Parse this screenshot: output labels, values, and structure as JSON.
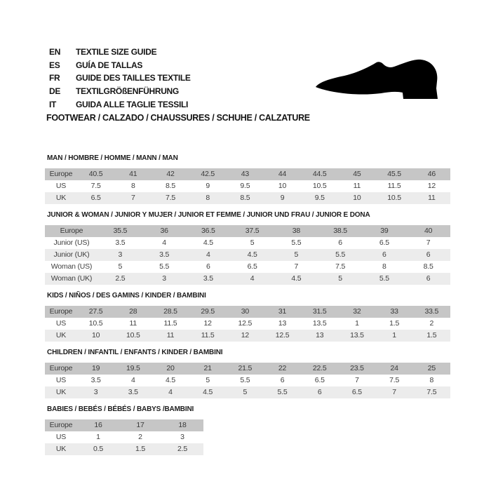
{
  "header": {
    "languages": [
      {
        "code": "EN",
        "label": "TEXTILE SIZE GUIDE"
      },
      {
        "code": "ES",
        "label": "GUÍA DE TALLAS"
      },
      {
        "code": "FR",
        "label": "GUIDE DES TAILLES TEXTILE"
      },
      {
        "code": "DE",
        "label": "TEXTILGRÖßENFÜHRUNG"
      },
      {
        "code": "IT",
        "label": "GUIDA ALLE TAGLIE TESSILI"
      }
    ],
    "category_line": "FOOTWEAR / CALZADO / CHAUSSURES / SCHUHE / CALZATURE",
    "shoe_icon": "dress-shoe-silhouette-icon"
  },
  "tables": [
    {
      "title": "MAN / HOMBRE / HOMME / MANN / MAN",
      "rows": [
        {
          "label": "Europe",
          "values": [
            "40.5",
            "41",
            "42",
            "42.5",
            "43",
            "44",
            "44.5",
            "45",
            "45.5",
            "46"
          ]
        },
        {
          "label": "US",
          "values": [
            "7.5",
            "8",
            "8.5",
            "9",
            "9.5",
            "10",
            "10.5",
            "11",
            "11.5",
            "12"
          ]
        },
        {
          "label": "UK",
          "values": [
            "6.5",
            "7",
            "7.5",
            "8",
            "8.5",
            "9",
            "9.5",
            "10",
            "10.5",
            "11"
          ]
        }
      ]
    },
    {
      "title": "JUNIOR & WOMAN / JUNIOR Y MUJER / JUNIOR ET FEMME / JUNIOR UND FRAU / JUNIOR E DONA",
      "rows": [
        {
          "label": "Europe",
          "values": [
            "35.5",
            "36",
            "36.5",
            "37.5",
            "38",
            "38.5",
            "39",
            "40"
          ]
        },
        {
          "label": "Junior (US)",
          "values": [
            "3.5",
            "4",
            "4.5",
            "5",
            "5.5",
            "6",
            "6.5",
            "7"
          ]
        },
        {
          "label": "Junior (UK)",
          "values": [
            "3",
            "3.5",
            "4",
            "4.5",
            "5",
            "5.5",
            "6",
            "6"
          ]
        },
        {
          "label": "Woman (US)",
          "values": [
            "5",
            "5.5",
            "6",
            "6.5",
            "7",
            "7.5",
            "8",
            "8.5"
          ]
        },
        {
          "label": "Woman (UK)",
          "values": [
            "2.5",
            "3",
            "3.5",
            "4",
            "4.5",
            "5",
            "5.5",
            "6"
          ]
        }
      ]
    },
    {
      "title": "KIDS / NIÑOS / DES GAMINS / KINDER / BAMBINI",
      "rows": [
        {
          "label": "Europe",
          "values": [
            "27.5",
            "28",
            "28.5",
            "29.5",
            "30",
            "31",
            "31.5",
            "32",
            "33",
            "33.5"
          ]
        },
        {
          "label": "US",
          "values": [
            "10.5",
            "11",
            "11.5",
            "12",
            "12.5",
            "13",
            "13.5",
            "1",
            "1.5",
            "2"
          ]
        },
        {
          "label": "UK",
          "values": [
            "10",
            "10.5",
            "11",
            "11.5",
            "12",
            "12.5",
            "13",
            "13.5",
            "1",
            "1.5"
          ]
        }
      ]
    },
    {
      "title": "CHILDREN / INFANTIL / ENFANTS / KINDER / BAMBINI",
      "rows": [
        {
          "label": "Europe",
          "values": [
            "19",
            "19.5",
            "20",
            "21",
            "21.5",
            "22",
            "22.5",
            "23.5",
            "24",
            "25"
          ]
        },
        {
          "label": "US",
          "values": [
            "3.5",
            "4",
            "4.5",
            "5",
            "5.5",
            "6",
            "6.5",
            "7",
            "7.5",
            "8"
          ]
        },
        {
          "label": "UK",
          "values": [
            "3",
            "3.5",
            "4",
            "4.5",
            "5",
            "5.5",
            "6",
            "6.5",
            "7",
            "7.5"
          ]
        }
      ]
    },
    {
      "title": "BABIES  / BEBÉS / BÉBÉS / BABYS /BAMBINI",
      "rows": [
        {
          "label": "Europe",
          "values": [
            "16",
            "17",
            "18"
          ]
        },
        {
          "label": "US",
          "values": [
            "1",
            "2",
            "3"
          ]
        },
        {
          "label": "UK",
          "values": [
            "0.5",
            "1.5",
            "2.5"
          ]
        }
      ]
    }
  ],
  "colors": {
    "page_bg": "#ffffff",
    "header_row_bg": "#c6c6c6",
    "alt_row_bg": "#ececec",
    "title_text": "#1d1d1d",
    "cell_text": "#404040",
    "icon_fill": "#000000"
  }
}
